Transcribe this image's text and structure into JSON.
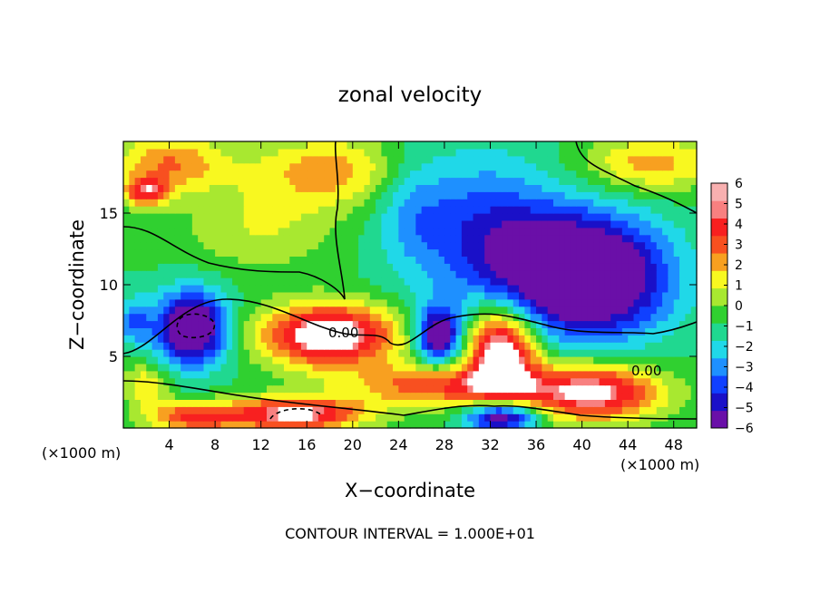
{
  "chart_data": {
    "type": "heatmap",
    "title": "zonal velocity",
    "xlabel": "X−coordinate",
    "ylabel": "Z−coordinate",
    "x_unit_label_left": "(×1000 m)",
    "x_unit_label_right": "(×1000 m)",
    "footer": "CONTOUR INTERVAL = 1.000E+01",
    "xlim": [
      0,
      50
    ],
    "ylim": [
      0,
      20
    ],
    "x_ticks": [
      4,
      8,
      12,
      16,
      20,
      24,
      28,
      32,
      36,
      40,
      44,
      48
    ],
    "x_tick_labels": [
      "4",
      "8",
      "12",
      "16",
      "20",
      "24",
      "28",
      "32",
      "36",
      "40",
      "44",
      "48"
    ],
    "y_ticks": [
      5,
      10,
      15
    ],
    "y_tick_labels": [
      "5",
      "10",
      "15"
    ],
    "contour_labels": [
      "0.00",
      "0.00"
    ],
    "colorbar": {
      "min": -6,
      "max": 6,
      "ticks": [
        "6",
        "5",
        "4",
        "3",
        "2",
        "1",
        "0",
        "−1",
        "−2",
        "−3",
        "−4",
        "−5",
        "−6"
      ],
      "colors": [
        "#6a0fa8",
        "#1a10c8",
        "#1040ff",
        "#1e90ff",
        "#20d8e8",
        "#20d890",
        "#30d030",
        "#a8e830",
        "#f8f820",
        "#f8a020",
        "#f85020",
        "#f82020",
        "#f88080",
        "#f8b0b0"
      ]
    },
    "features": [
      {
        "kind": "background",
        "value": 0.0
      },
      {
        "kind": "blob",
        "x": 4,
        "z": 18.5,
        "value": 4.0,
        "sx": 5,
        "sz": 2
      },
      {
        "kind": "blob",
        "x": 18,
        "z": 18,
        "value": 3.5,
        "sx": 7,
        "sz": 2.5
      },
      {
        "kind": "blob",
        "x": 46,
        "z": 18.5,
        "value": 3.5,
        "sx": 6,
        "sz": 2
      },
      {
        "kind": "blob",
        "x": 2,
        "z": 16.5,
        "value": 5.0,
        "sx": 2,
        "sz": 1
      },
      {
        "kind": "blob",
        "x": 12,
        "z": 14,
        "value": 2.0,
        "sx": 7,
        "sz": 3
      },
      {
        "kind": "blob",
        "x": 25,
        "z": 16,
        "value": -1.5,
        "sx": 3,
        "sz": 4
      },
      {
        "kind": "blob",
        "x": 31,
        "z": 14,
        "value": -3.5,
        "sx": 7,
        "sz": 5
      },
      {
        "kind": "blob",
        "x": 37,
        "z": 11,
        "value": -4.5,
        "sx": 6,
        "sz": 4
      },
      {
        "kind": "blob",
        "x": 42,
        "z": 10.5,
        "value": -6.5,
        "sx": 6,
        "sz": 4
      },
      {
        "kind": "blob",
        "x": 6,
        "z": 7,
        "value": -8.0,
        "sx": 3,
        "sz": 2.5
      },
      {
        "kind": "blob",
        "x": 1,
        "z": 7.5,
        "value": -3.0,
        "sx": 1.5,
        "sz": 1.5
      },
      {
        "kind": "blob",
        "x": 18,
        "z": 6.5,
        "value": 8.0,
        "sx": 6,
        "sz": 2.2
      },
      {
        "kind": "blob",
        "x": 27.5,
        "z": 6.5,
        "value": -7.0,
        "sx": 2,
        "sz": 2
      },
      {
        "kind": "blob",
        "x": 33,
        "z": 5.5,
        "value": 8.0,
        "sx": 3,
        "sz": 3
      },
      {
        "kind": "blob",
        "x": 28,
        "z": 3,
        "value": 5.0,
        "sx": 8,
        "sz": 1.5
      },
      {
        "kind": "blob",
        "x": 41,
        "z": 2.5,
        "value": 7.0,
        "sx": 6,
        "sz": 2
      },
      {
        "kind": "blob",
        "x": 15,
        "z": 1,
        "value": 7.0,
        "sx": 6,
        "sz": 1.2
      },
      {
        "kind": "blob",
        "x": 6,
        "z": 0.8,
        "value": 5.0,
        "sx": 4,
        "sz": 1
      },
      {
        "kind": "blob",
        "x": 33,
        "z": 0.8,
        "value": -7.0,
        "sx": 3,
        "sz": 1
      },
      {
        "kind": "blob",
        "x": 2,
        "z": 3,
        "value": 3.0,
        "sx": 2,
        "sz": 1.5
      }
    ]
  }
}
